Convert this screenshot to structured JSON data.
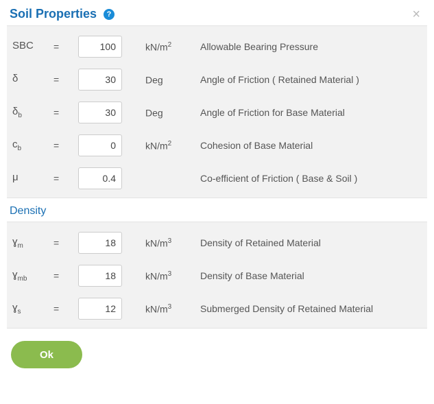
{
  "header": {
    "title": "Soil Properties",
    "help_glyph": "?",
    "close_glyph": "×"
  },
  "eq": "=",
  "props": [
    {
      "sym": "SBC",
      "sub": "",
      "val": "100",
      "unit_base": "kN/m",
      "unit_sup": "2",
      "desc": "Allowable Bearing Pressure"
    },
    {
      "sym": "δ",
      "sub": "",
      "val": "30",
      "unit_base": "Deg",
      "unit_sup": "",
      "desc": "Angle of Friction ( Retained Material )"
    },
    {
      "sym": "δ",
      "sub": "b",
      "val": "30",
      "unit_base": "Deg",
      "unit_sup": "",
      "desc": "Angle of Friction for Base Material"
    },
    {
      "sym": "c",
      "sub": "b",
      "val": "0",
      "unit_base": "kN/m",
      "unit_sup": "2",
      "desc": "Cohesion of Base Material"
    },
    {
      "sym": "μ",
      "sub": "",
      "val": "0.4",
      "unit_base": "",
      "unit_sup": "",
      "desc": "Co-efficient of Friction ( Base & Soil )"
    }
  ],
  "density_title": "Density",
  "density": [
    {
      "sym": "ɣ",
      "sub": "m",
      "val": "18",
      "unit_base": "kN/m",
      "unit_sup": "3",
      "desc": "Density of Retained Material"
    },
    {
      "sym": "ɣ",
      "sub": "mb",
      "val": "18",
      "unit_base": "kN/m",
      "unit_sup": "3",
      "desc": "Density of Base Material"
    },
    {
      "sym": "ɣ",
      "sub": "s",
      "val": "12",
      "unit_base": "kN/m",
      "unit_sup": "3",
      "desc": "Submerged Density of Retained Material"
    }
  ],
  "ok_label": "Ok",
  "colors": {
    "heading": "#1a6fb3",
    "panel_bg": "#f2f2f2",
    "ok_bg": "#8bbb4e",
    "help_bg": "#1a8cd8",
    "text": "#555555"
  }
}
